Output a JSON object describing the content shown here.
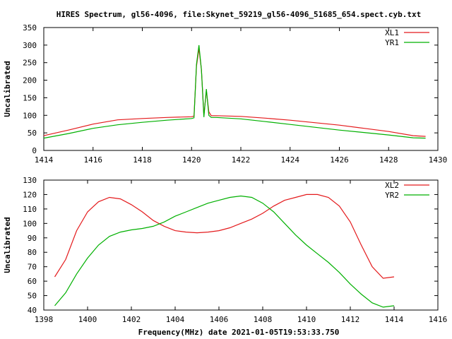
{
  "title": "HIRES Spectrum, gl56-4096, file:Skynet_59219_gl56-4096_51685_654.spect.cyb.txt",
  "xlabel": "Frequency(MHz) date 2021-01-05T19:53:33.750",
  "colors": {
    "series1": "#e41a1c",
    "series2": "#00b000"
  },
  "chart_data": [
    {
      "type": "line",
      "ylabel": "Uncalibrated",
      "xlim": [
        1414,
        1430
      ],
      "ylim": [
        0,
        350
      ],
      "xticks": [
        1414,
        1416,
        1418,
        1420,
        1422,
        1424,
        1426,
        1428,
        1430
      ],
      "yticks": [
        0,
        50,
        100,
        150,
        200,
        250,
        300,
        350
      ],
      "legend": "top-right",
      "grid": false,
      "series": [
        {
          "name": "XL1",
          "x": [
            1414.0,
            1415.0,
            1416.0,
            1417.0,
            1418.0,
            1419.0,
            1420.0,
            1420.1,
            1420.2,
            1420.3,
            1420.4,
            1420.5,
            1420.6,
            1420.7,
            1420.8,
            1421.0,
            1422.0,
            1423.0,
            1424.0,
            1425.0,
            1426.0,
            1427.0,
            1428.0,
            1429.0,
            1429.5
          ],
          "y": [
            42,
            58,
            75,
            87,
            91,
            94,
            96,
            98,
            240,
            290,
            230,
            100,
            170,
            110,
            99,
            99,
            97,
            92,
            86,
            79,
            72,
            63,
            54,
            42,
            40
          ]
        },
        {
          "name": "YR1",
          "x": [
            1414.0,
            1415.0,
            1416.0,
            1417.0,
            1418.0,
            1419.0,
            1420.0,
            1420.1,
            1420.2,
            1420.3,
            1420.4,
            1420.5,
            1420.6,
            1420.7,
            1420.8,
            1421.0,
            1422.0,
            1423.0,
            1424.0,
            1425.0,
            1426.0,
            1427.0,
            1428.0,
            1429.0,
            1429.5
          ],
          "y": [
            35,
            48,
            63,
            73,
            80,
            86,
            91,
            93,
            245,
            300,
            230,
            95,
            175,
            100,
            94,
            94,
            90,
            82,
            74,
            66,
            58,
            51,
            44,
            36,
            35
          ]
        }
      ]
    },
    {
      "type": "line",
      "ylabel": "Uncalibrated",
      "xlim": [
        1398,
        1416
      ],
      "ylim": [
        40,
        130
      ],
      "xticks": [
        1398,
        1400,
        1402,
        1404,
        1406,
        1408,
        1410,
        1412,
        1414,
        1416
      ],
      "yticks": [
        40,
        50,
        60,
        70,
        80,
        90,
        100,
        110,
        120,
        130
      ],
      "legend": "top-right",
      "grid": false,
      "series": [
        {
          "name": "XL2",
          "x": [
            1398.5,
            1399.0,
            1399.5,
            1400.0,
            1400.5,
            1401.0,
            1401.5,
            1402.0,
            1402.5,
            1403.0,
            1403.5,
            1404.0,
            1404.5,
            1405.0,
            1405.5,
            1406.0,
            1406.5,
            1407.0,
            1407.5,
            1408.0,
            1408.5,
            1409.0,
            1409.5,
            1410.0,
            1410.5,
            1411.0,
            1411.5,
            1412.0,
            1412.5,
            1413.0,
            1413.5,
            1414.0
          ],
          "y": [
            63,
            75,
            95,
            108,
            115,
            118,
            117,
            113,
            108,
            102,
            98,
            95,
            94,
            93.5,
            94,
            95,
            97,
            100,
            103,
            107,
            112,
            116,
            118,
            120,
            120,
            118,
            112,
            101,
            85,
            70,
            62,
            63
          ]
        },
        {
          "name": "YR2",
          "x": [
            1398.5,
            1399.0,
            1399.5,
            1400.0,
            1400.5,
            1401.0,
            1401.5,
            1402.0,
            1402.5,
            1403.0,
            1403.5,
            1404.0,
            1404.5,
            1405.0,
            1405.5,
            1406.0,
            1406.5,
            1407.0,
            1407.5,
            1408.0,
            1408.5,
            1409.0,
            1409.5,
            1410.0,
            1410.5,
            1411.0,
            1411.5,
            1412.0,
            1412.5,
            1413.0,
            1413.5,
            1414.0
          ],
          "y": [
            43,
            52,
            65,
            76,
            85,
            91,
            94,
            95.5,
            96.5,
            98,
            101,
            105,
            108,
            111,
            114,
            116,
            118,
            119,
            118,
            114,
            108,
            100,
            92,
            85,
            79,
            73,
            66,
            58,
            51,
            45,
            42,
            43
          ]
        }
      ]
    }
  ]
}
